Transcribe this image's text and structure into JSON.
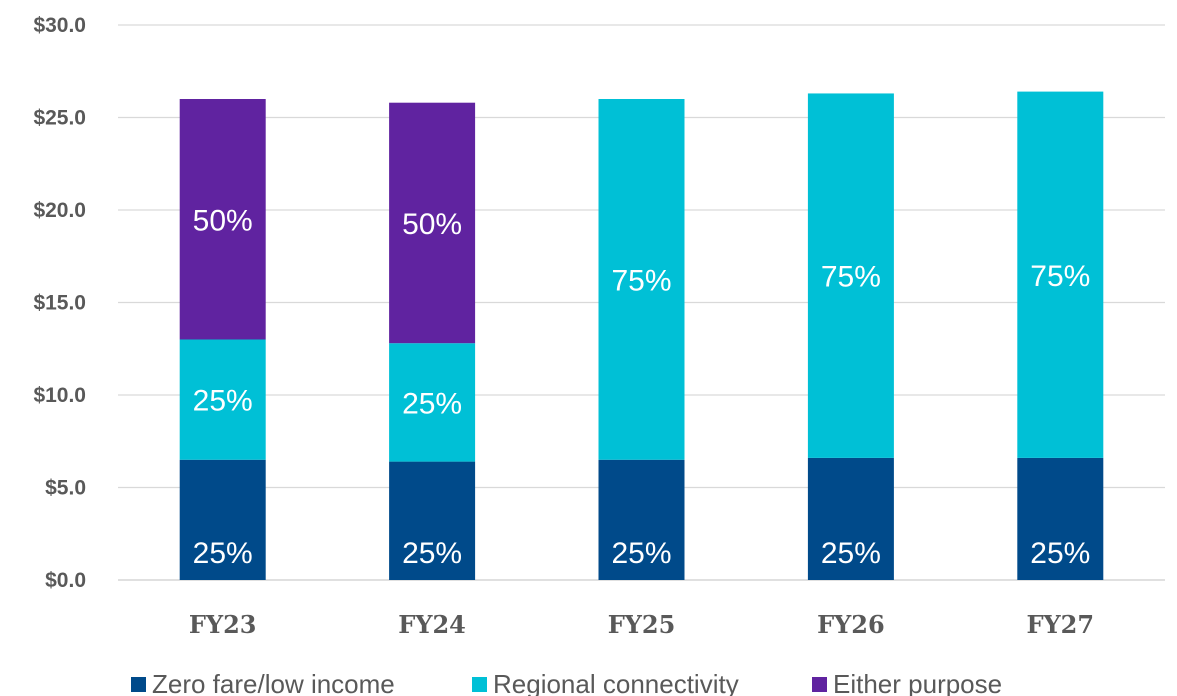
{
  "chart_data": {
    "type": "bar",
    "stacked": true,
    "categories": [
      "FY23",
      "FY24",
      "FY25",
      "FY26",
      "FY27"
    ],
    "series": [
      {
        "name": "Zero fare/low income",
        "color": "#004a8a",
        "values": [
          6.5,
          6.4,
          6.5,
          6.6,
          6.6
        ],
        "labels": [
          "25%",
          "25%",
          "25%",
          "25%",
          "25%"
        ]
      },
      {
        "name": "Regional connectivity",
        "color": "#00c0d6",
        "values": [
          6.5,
          6.4,
          19.5,
          19.7,
          19.8
        ],
        "labels": [
          "25%",
          "25%",
          "75%",
          "75%",
          "75%"
        ]
      },
      {
        "name": "Either purpose",
        "color": "#6023a0",
        "values": [
          13.0,
          13.0,
          0,
          0,
          0
        ],
        "labels": [
          "50%",
          "50%",
          "",
          "",
          ""
        ]
      }
    ],
    "y_ticks": [
      "$0.0",
      "$5.0",
      "$10.0",
      "$15.0",
      "$20.0",
      "$25.0",
      "$30.0"
    ],
    "y_tick_values": [
      0,
      5,
      10,
      15,
      20,
      25,
      30
    ],
    "ylim": [
      0,
      30
    ],
    "grid": true,
    "legend_position": "bottom",
    "title": "",
    "xlabel": "",
    "ylabel": ""
  }
}
